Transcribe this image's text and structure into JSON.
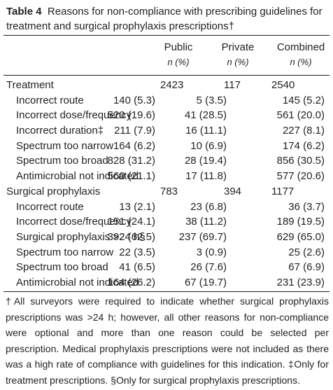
{
  "caption": {
    "label": "Table 4",
    "text": "Reasons for non-compliance with prescribing guidelines for treatment and surgical prophylaxis prescriptions†"
  },
  "columns": [
    {
      "name": "Public",
      "sub": "n (%)"
    },
    {
      "name": "Private",
      "sub": "n (%)"
    },
    {
      "name": "Combined",
      "sub": "n (%)"
    }
  ],
  "rows": [
    {
      "label": "Treatment",
      "public": "2423",
      "private": "117",
      "combined": "2540"
    },
    {
      "label": "Incorrect route",
      "public": "140 (5.3)",
      "private": "5 (3.5)",
      "combined": "145 (5.2)"
    },
    {
      "label": "Incorrect dose/frequency",
      "public": "520 (19.6)",
      "private": "41 (28.5)",
      "combined": "561 (20.0)"
    },
    {
      "label": "Incorrect duration‡",
      "public": "211 (7.9)",
      "private": "16 (11.1)",
      "combined": "227 (8.1)"
    },
    {
      "label": "Spectrum too narrow",
      "public": "164 (6.2)",
      "private": "10 (6.9)",
      "combined": "174 (6.2)"
    },
    {
      "label": "Spectrum too broad",
      "public": "828 (31.2)",
      "private": "28 (19.4)",
      "combined": "856 (30.5)"
    },
    {
      "label": "Antimicrobial not indicated",
      "public": "560 (21.1)",
      "private": "17 (11.8)",
      "combined": "577 (20.6)"
    },
    {
      "label": "Surgical prophylaxis",
      "public": "783",
      "private": "394",
      "combined": "1177"
    },
    {
      "label": "Incorrect route",
      "public": "13 (2.1)",
      "private": "23 (6.8)",
      "combined": "36 (3.7)"
    },
    {
      "label": "Incorrect dose/frequency",
      "public": "151 (24.1)",
      "private": "38 (11.2)",
      "combined": "189 (19.5)"
    },
    {
      "label": "Surgical prophylaxis >24 h§",
      "public": "392 (62.5)",
      "private": "237 (69.7)",
      "combined": "629 (65.0)"
    },
    {
      "label": "Spectrum too narrow",
      "public": "22 (3.5)",
      "private": "3 (0.9)",
      "combined": "25 (2.6)"
    },
    {
      "label": "Spectrum too broad",
      "public": "41 (6.5)",
      "private": "26 (7.6)",
      "combined": "67 (6.9)"
    },
    {
      "label": "Antimicrobial not indicated",
      "public": "164 (26.2)",
      "private": "67 (19.7)",
      "combined": "231 (23.9)"
    }
  ],
  "footnote": "†All surveyors were required to indicate whether surgical prophylaxis prescriptions was >24 h; however, all other reasons for non-compliance were optional and more than one reason could be selected per prescription. Medical prophylaxis prescriptions were not included as there was a high rate of compliance with guidelines for this indication. ‡Only for treatment prescriptions. §Only for surgical prophylaxis prescriptions."
}
